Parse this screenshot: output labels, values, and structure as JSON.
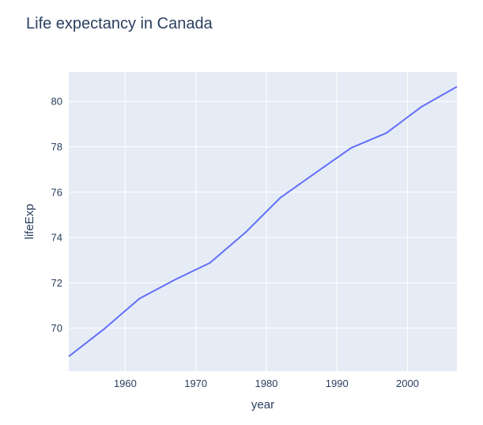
{
  "chart_data": {
    "type": "line",
    "title": "Life expectancy in Canada",
    "xlabel": "year",
    "ylabel": "lifeExp",
    "xlim": [
      1952,
      2007
    ],
    "ylim": [
      68.1,
      81.3
    ],
    "xticks": [
      1960,
      1970,
      1980,
      1990,
      2000
    ],
    "yticks": [
      70,
      72,
      74,
      76,
      78,
      80
    ],
    "grid": true,
    "colors": {
      "line": "#636efa",
      "plot_bg": "#e5ecf6",
      "grid": "#ffffff",
      "text": "#2a3f5f"
    },
    "series": [
      {
        "x": [
          1952,
          1957,
          1962,
          1967,
          1972,
          1977,
          1982,
          1987,
          1992,
          1997,
          2002,
          2007
        ],
        "y": [
          68.75,
          69.96,
          71.3,
          72.13,
          72.88,
          74.21,
          75.76,
          76.86,
          77.95,
          78.61,
          79.77,
          80.653
        ]
      }
    ]
  }
}
